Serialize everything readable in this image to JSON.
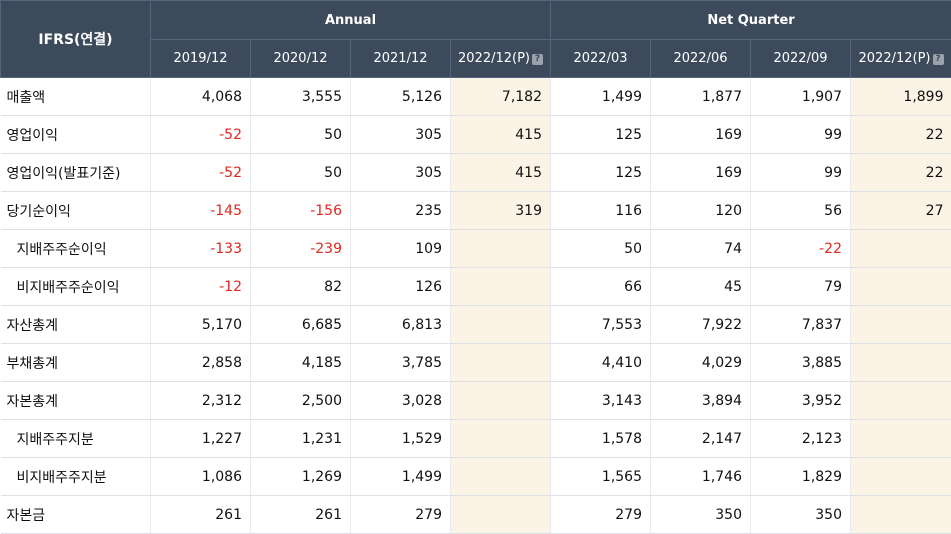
{
  "header": {
    "corner": "IFRS(연결)",
    "group_annual": "Annual",
    "group_quarter": "Net Quarter",
    "periods": [
      "2019/12",
      "2020/12",
      "2021/12",
      "2022/12(P)",
      "2022/03",
      "2022/06",
      "2022/09",
      "2022/12(P)"
    ],
    "help_glyph": "?"
  },
  "rows": [
    {
      "label": "매출액",
      "sub": false,
      "values": [
        "4,068",
        "3,555",
        "5,126",
        "7,182",
        "1,499",
        "1,877",
        "1,907",
        "1,899"
      ]
    },
    {
      "label": "영업이익",
      "sub": false,
      "values": [
        "-52",
        "50",
        "305",
        "415",
        "125",
        "169",
        "99",
        "22"
      ]
    },
    {
      "label": "영업이익(발표기준)",
      "sub": false,
      "values": [
        "-52",
        "50",
        "305",
        "415",
        "125",
        "169",
        "99",
        "22"
      ]
    },
    {
      "label": "당기순이익",
      "sub": false,
      "values": [
        "-145",
        "-156",
        "235",
        "319",
        "116",
        "120",
        "56",
        "27"
      ]
    },
    {
      "label": "지배주주순이익",
      "sub": true,
      "values": [
        "-133",
        "-239",
        "109",
        "",
        "50",
        "74",
        "-22",
        ""
      ]
    },
    {
      "label": "비지배주주순이익",
      "sub": true,
      "values": [
        "-12",
        "82",
        "126",
        "",
        "66",
        "45",
        "79",
        ""
      ]
    },
    {
      "label": "자산총계",
      "sub": false,
      "values": [
        "5,170",
        "6,685",
        "6,813",
        "",
        "7,553",
        "7,922",
        "7,837",
        ""
      ]
    },
    {
      "label": "부채총계",
      "sub": false,
      "values": [
        "2,858",
        "4,185",
        "3,785",
        "",
        "4,410",
        "4,029",
        "3,885",
        ""
      ]
    },
    {
      "label": "자본총계",
      "sub": false,
      "values": [
        "2,312",
        "2,500",
        "3,028",
        "",
        "3,143",
        "3,894",
        "3,952",
        ""
      ]
    },
    {
      "label": "지배주주지분",
      "sub": true,
      "values": [
        "1,227",
        "1,231",
        "1,529",
        "",
        "1,578",
        "2,147",
        "2,123",
        ""
      ]
    },
    {
      "label": "비지배주주지분",
      "sub": true,
      "values": [
        "1,086",
        "1,269",
        "1,499",
        "",
        "1,565",
        "1,746",
        "1,829",
        ""
      ]
    },
    {
      "label": "자본금",
      "sub": false,
      "values": [
        "261",
        "261",
        "279",
        "",
        "279",
        "350",
        "350",
        ""
      ]
    }
  ],
  "colors": {
    "header_bg": "#3c4a5c",
    "projection_bg": "#fbf3e6",
    "negative": "#e0261f"
  }
}
